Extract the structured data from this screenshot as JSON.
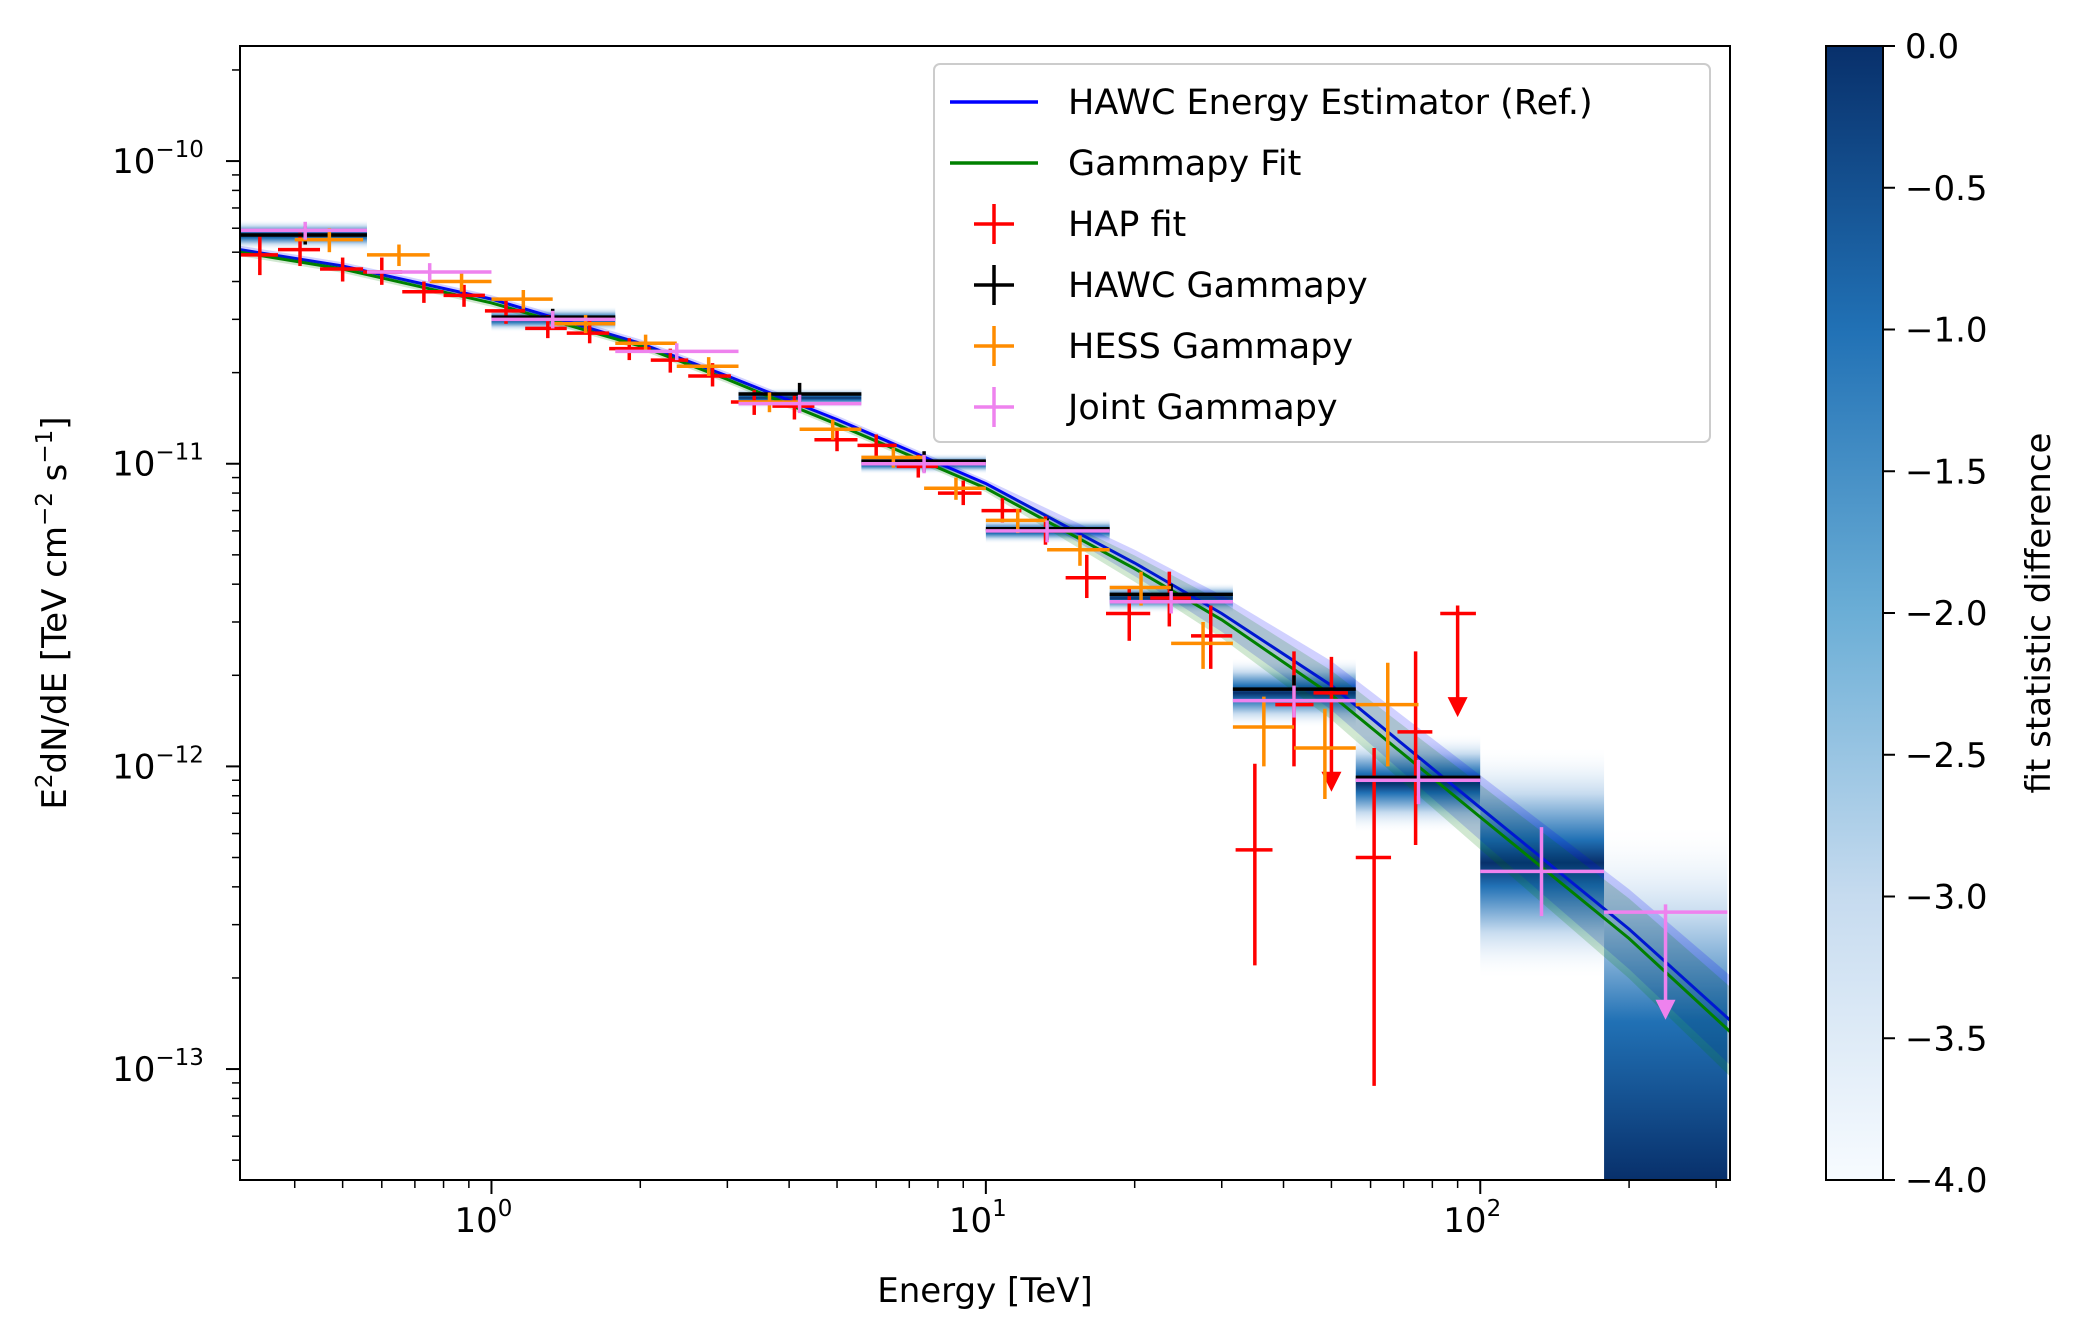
{
  "chart_data": {
    "type": "scatter",
    "title": "",
    "xlabel": "Energy [TeV]",
    "ylabel": {
      "base": "E",
      "sup1": "2",
      "mid": "dN/dE [TeV cm",
      "sup2": "−2",
      "mid2": " s",
      "sup3": "−1",
      "end": "]"
    },
    "x_scale": "log",
    "y_scale": "log",
    "xlim": [
      0.31,
      320
    ],
    "ylim": [
      4.3e-14,
      2.4e-10
    ],
    "x_ticks": [
      {
        "value": 1,
        "base": "10",
        "exp": "0"
      },
      {
        "value": 10,
        "base": "10",
        "exp": "1"
      },
      {
        "value": 100,
        "base": "10",
        "exp": "2"
      }
    ],
    "y_ticks": [
      {
        "value": 1e-13,
        "base": "10",
        "exp": "−13"
      },
      {
        "value": 1e-12,
        "base": "10",
        "exp": "−12"
      },
      {
        "value": 1e-11,
        "base": "10",
        "exp": "−11"
      },
      {
        "value": 1e-10,
        "base": "10",
        "exp": "−10"
      }
    ],
    "legend_position": "top-right",
    "colorbar": {
      "label": "fit statistic difference",
      "range": [
        -4.0,
        0.0
      ],
      "ticks": [
        "0.0",
        "−0.5",
        "−1.0",
        "−1.5",
        "−2.0",
        "−2.5",
        "−3.0",
        "−3.5",
        "−4.0"
      ],
      "tick_values": [
        0.0,
        -0.5,
        -1.0,
        -1.5,
        -2.0,
        -2.5,
        -3.0,
        -3.5,
        -4.0
      ],
      "colors": [
        "#f7fbff",
        "#c6dbef",
        "#6baed6",
        "#2171b5",
        "#08306b"
      ]
    },
    "series": [
      {
        "name": "HAWC Energy Estimator (Ref.)",
        "kind": "line",
        "color": "#0000ff",
        "x": [
          0.31,
          0.5,
          1,
          2,
          3,
          5,
          10,
          20,
          30,
          50,
          100,
          200,
          320
        ],
        "y": [
          5.1e-11,
          4.5e-11,
          3.5e-11,
          2.5e-11,
          1.95e-11,
          1.4e-11,
          8.6e-12,
          4.7e-12,
          3.2e-12,
          1.85e-12,
          7.3e-13,
          2.9e-13,
          1.45e-13
        ]
      },
      {
        "name": "Gammapy Fit",
        "kind": "line",
        "color": "#008000",
        "x": [
          0.31,
          0.5,
          1,
          2,
          3,
          5,
          10,
          20,
          30,
          50,
          100,
          200,
          320
        ],
        "y": [
          5e-11,
          4.4e-11,
          3.4e-11,
          2.45e-11,
          1.9e-11,
          1.35e-11,
          8.3e-12,
          4.5e-12,
          3.05e-12,
          1.72e-12,
          6.8e-13,
          2.7e-13,
          1.33e-13
        ]
      },
      {
        "name": "HAP fit",
        "kind": "errorbar",
        "color": "#ff0000",
        "points": [
          {
            "x": 0.34,
            "y": 4.9e-11,
            "xlo": 0.31,
            "xhi": 0.37,
            "ylo": 4.2e-11,
            "yhi": 5.7e-11
          },
          {
            "x": 0.41,
            "y": 5.1e-11,
            "xlo": 0.37,
            "xhi": 0.45,
            "ylo": 4.5e-11,
            "yhi": 5.8e-11
          },
          {
            "x": 0.5,
            "y": 4.4e-11,
            "xlo": 0.45,
            "xhi": 0.55,
            "ylo": 4e-11,
            "yhi": 4.8e-11
          },
          {
            "x": 0.6,
            "y": 4.3e-11,
            "xlo": 0.55,
            "xhi": 0.66,
            "ylo": 3.9e-11,
            "yhi": 4.8e-11
          },
          {
            "x": 0.73,
            "y": 3.7e-11,
            "xlo": 0.66,
            "xhi": 0.8,
            "ylo": 3.4e-11,
            "yhi": 4e-11
          },
          {
            "x": 0.88,
            "y": 3.6e-11,
            "xlo": 0.8,
            "xhi": 0.97,
            "ylo": 3.3e-11,
            "yhi": 3.9e-11
          },
          {
            "x": 1.07,
            "y": 3.2e-11,
            "xlo": 0.97,
            "xhi": 1.17,
            "ylo": 2.9e-11,
            "yhi": 3.5e-11
          },
          {
            "x": 1.3,
            "y": 2.8e-11,
            "xlo": 1.17,
            "xhi": 1.42,
            "ylo": 2.6e-11,
            "yhi": 3.1e-11
          },
          {
            "x": 1.58,
            "y": 2.7e-11,
            "xlo": 1.42,
            "xhi": 1.73,
            "ylo": 2.5e-11,
            "yhi": 3e-11
          },
          {
            "x": 1.9,
            "y": 2.4e-11,
            "xlo": 1.73,
            "xhi": 2.1,
            "ylo": 2.2e-11,
            "yhi": 2.6e-11
          },
          {
            "x": 2.3,
            "y": 2.2e-11,
            "xlo": 2.1,
            "xhi": 2.5,
            "ylo": 2e-11,
            "yhi": 2.4e-11
          },
          {
            "x": 2.8,
            "y": 1.95e-11,
            "xlo": 2.5,
            "xhi": 3.05,
            "ylo": 1.8e-11,
            "yhi": 2.15e-11
          },
          {
            "x": 3.4,
            "y": 1.6e-11,
            "xlo": 3.05,
            "xhi": 3.7,
            "ylo": 1.45e-11,
            "yhi": 1.75e-11
          },
          {
            "x": 4.1,
            "y": 1.55e-11,
            "xlo": 3.7,
            "xhi": 4.5,
            "ylo": 1.4e-11,
            "yhi": 1.7e-11
          },
          {
            "x": 5.0,
            "y": 1.2e-11,
            "xlo": 4.5,
            "xhi": 5.5,
            "ylo": 1.1e-11,
            "yhi": 1.3e-11
          },
          {
            "x": 6.0,
            "y": 1.15e-11,
            "xlo": 5.5,
            "xhi": 6.6,
            "ylo": 1.05e-11,
            "yhi": 1.25e-11
          },
          {
            "x": 7.3,
            "y": 9.8e-12,
            "xlo": 6.6,
            "xhi": 8.0,
            "ylo": 9e-12,
            "yhi": 1.07e-11
          },
          {
            "x": 9.0,
            "y": 8e-12,
            "xlo": 8.0,
            "xhi": 9.8,
            "ylo": 7.3e-12,
            "yhi": 8.8e-12
          },
          {
            "x": 10.8,
            "y": 7e-12,
            "xlo": 9.8,
            "xhi": 11.8,
            "ylo": 6.4e-12,
            "yhi": 7.7e-12
          },
          {
            "x": 13.2,
            "y": 6e-12,
            "xlo": 11.8,
            "xhi": 14.5,
            "ylo": 5.4e-12,
            "yhi": 6.7e-12
          },
          {
            "x": 16.0,
            "y": 4.2e-12,
            "xlo": 14.5,
            "xhi": 17.5,
            "ylo": 3.6e-12,
            "yhi": 5e-12
          },
          {
            "x": 19.5,
            "y": 3.2e-12,
            "xlo": 17.5,
            "xhi": 21.5,
            "ylo": 2.6e-12,
            "yhi": 3.9e-12
          },
          {
            "x": 23.5,
            "y": 3.6e-12,
            "xlo": 21.5,
            "xhi": 26.0,
            "ylo": 2.9e-12,
            "yhi": 4.4e-12
          },
          {
            "x": 28.5,
            "y": 2.7e-12,
            "xlo": 26.0,
            "xhi": 31.5,
            "ylo": 2.1e-12,
            "yhi": 3.4e-12
          },
          {
            "x": 35.0,
            "y": 5.3e-13,
            "xlo": 32.0,
            "xhi": 38.0,
            "ylo": 2.2e-13,
            "yhi": 1.02e-12
          },
          {
            "x": 42.0,
            "y": 1.6e-12,
            "xlo": 38.5,
            "xhi": 46.0,
            "ylo": 1e-12,
            "yhi": 2.4e-12
          },
          {
            "x": 50.0,
            "y": 1.75e-12,
            "xlo": 46.0,
            "xhi": 54.0,
            "ylo": 8.5e-13,
            "yhi": 2.3e-12,
            "upper_limit": true
          },
          {
            "x": 61.0,
            "y": 5e-13,
            "xlo": 56.0,
            "xhi": 66.0,
            "ylo": 8.8e-14,
            "yhi": 1.15e-12
          },
          {
            "x": 74.0,
            "y": 1.3e-12,
            "xlo": 68.0,
            "xhi": 80.0,
            "ylo": 5.5e-13,
            "yhi": 2.4e-12
          },
          {
            "x": 90.0,
            "y": 3.2e-12,
            "xlo": 83.0,
            "xhi": 98.0,
            "ylo": 1.5e-12,
            "yhi": 3.4e-12,
            "upper_limit": true
          }
        ]
      },
      {
        "name": "HAWC Gammapy",
        "kind": "errorbar",
        "color": "#000000",
        "points": [
          {
            "x": 0.42,
            "y": 5.7e-11,
            "xlo": 0.31,
            "xhi": 0.56,
            "ylo": 5.3e-11,
            "yhi": 6.1e-11
          },
          {
            "x": 1.33,
            "y": 3.05e-11,
            "xlo": 1.0,
            "xhi": 1.78,
            "ylo": 2.85e-11,
            "yhi": 3.25e-11
          },
          {
            "x": 4.2,
            "y": 1.7e-11,
            "xlo": 3.16,
            "xhi": 5.6,
            "ylo": 1.58e-11,
            "yhi": 1.85e-11
          },
          {
            "x": 7.5,
            "y": 1.02e-11,
            "xlo": 5.6,
            "xhi": 10.0,
            "ylo": 9.4e-12,
            "yhi": 1.1e-11
          },
          {
            "x": 13.3,
            "y": 6.1e-12,
            "xlo": 10.0,
            "xhi": 17.8,
            "ylo": 5.6e-12,
            "yhi": 6.6e-12
          },
          {
            "x": 23.7,
            "y": 3.7e-12,
            "xlo": 17.8,
            "xhi": 31.6,
            "ylo": 3.4e-12,
            "yhi": 4e-12
          },
          {
            "x": 42.0,
            "y": 1.8e-12,
            "xlo": 31.6,
            "xhi": 56.0,
            "ylo": 1.6e-12,
            "yhi": 2e-12
          },
          {
            "x": 75.0,
            "y": 9.2e-13,
            "xlo": 56.0,
            "xhi": 100.0,
            "ylo": 8e-13,
            "yhi": 1.05e-12
          }
        ]
      },
      {
        "name": "HESS Gammapy",
        "kind": "errorbar",
        "color": "#ff8c00",
        "points": [
          {
            "x": 0.47,
            "y": 5.5e-11,
            "xlo": 0.4,
            "xhi": 0.55,
            "ylo": 5e-11,
            "yhi": 6e-11
          },
          {
            "x": 0.65,
            "y": 4.9e-11,
            "xlo": 0.56,
            "xhi": 0.75,
            "ylo": 4.5e-11,
            "yhi": 5.3e-11
          },
          {
            "x": 0.87,
            "y": 4e-11,
            "xlo": 0.75,
            "xhi": 1.0,
            "ylo": 3.7e-11,
            "yhi": 4.3e-11
          },
          {
            "x": 1.16,
            "y": 3.5e-11,
            "xlo": 1.0,
            "xhi": 1.33,
            "ylo": 3.25e-11,
            "yhi": 3.75e-11
          },
          {
            "x": 1.55,
            "y": 2.9e-11,
            "xlo": 1.33,
            "xhi": 1.78,
            "ylo": 2.7e-11,
            "yhi": 3.1e-11
          },
          {
            "x": 2.05,
            "y": 2.5e-11,
            "xlo": 1.78,
            "xhi": 2.37,
            "ylo": 2.33e-11,
            "yhi": 2.67e-11
          },
          {
            "x": 2.75,
            "y": 2.1e-11,
            "xlo": 2.37,
            "xhi": 3.16,
            "ylo": 1.95e-11,
            "yhi": 2.25e-11
          },
          {
            "x": 3.65,
            "y": 1.6e-11,
            "xlo": 3.16,
            "xhi": 4.2,
            "ylo": 1.48e-11,
            "yhi": 1.72e-11
          },
          {
            "x": 4.9,
            "y": 1.3e-11,
            "xlo": 4.2,
            "xhi": 5.6,
            "ylo": 1.2e-11,
            "yhi": 1.4e-11
          },
          {
            "x": 6.5,
            "y": 1.05e-11,
            "xlo": 5.6,
            "xhi": 7.5,
            "ylo": 9.7e-12,
            "yhi": 1.13e-11
          },
          {
            "x": 8.7,
            "y": 8.3e-12,
            "xlo": 7.5,
            "xhi": 10.0,
            "ylo": 7.6e-12,
            "yhi": 9e-12
          },
          {
            "x": 11.6,
            "y": 6.5e-12,
            "xlo": 10.0,
            "xhi": 13.3,
            "ylo": 5.9e-12,
            "yhi": 7.1e-12
          },
          {
            "x": 15.5,
            "y": 5.2e-12,
            "xlo": 13.3,
            "xhi": 17.8,
            "ylo": 4.6e-12,
            "yhi": 5.8e-12
          },
          {
            "x": 20.6,
            "y": 3.9e-12,
            "xlo": 17.8,
            "xhi": 23.7,
            "ylo": 3.4e-12,
            "yhi": 4.4e-12
          },
          {
            "x": 27.5,
            "y": 2.55e-12,
            "xlo": 23.7,
            "xhi": 31.6,
            "ylo": 2.1e-12,
            "yhi": 3e-12
          },
          {
            "x": 36.5,
            "y": 1.35e-12,
            "xlo": 31.6,
            "xhi": 42.0,
            "ylo": 1e-12,
            "yhi": 1.7e-12
          },
          {
            "x": 48.5,
            "y": 1.15e-12,
            "xlo": 42.0,
            "xhi": 56.0,
            "ylo": 7.8e-13,
            "yhi": 1.55e-12
          },
          {
            "x": 65.0,
            "y": 1.6e-12,
            "xlo": 56.0,
            "xhi": 75.0,
            "ylo": 1e-12,
            "yhi": 2.2e-12
          }
        ]
      },
      {
        "name": "Joint Gammapy",
        "kind": "errorbar",
        "color": "#ee82ee",
        "points": [
          {
            "x": 0.42,
            "y": 5.9e-11,
            "xlo": 0.31,
            "xhi": 0.56,
            "ylo": 5.5e-11,
            "yhi": 6.3e-11
          },
          {
            "x": 0.75,
            "y": 4.3e-11,
            "xlo": 0.56,
            "xhi": 1.0,
            "ylo": 4e-11,
            "yhi": 4.6e-11
          },
          {
            "x": 1.33,
            "y": 3e-11,
            "xlo": 1.0,
            "xhi": 1.78,
            "ylo": 2.8e-11,
            "yhi": 3.2e-11
          },
          {
            "x": 2.37,
            "y": 2.35e-11,
            "xlo": 1.78,
            "xhi": 3.16,
            "ylo": 2.2e-11,
            "yhi": 2.5e-11
          },
          {
            "x": 4.2,
            "y": 1.58e-11,
            "xlo": 3.16,
            "xhi": 5.6,
            "ylo": 1.47e-11,
            "yhi": 1.69e-11
          },
          {
            "x": 7.5,
            "y": 1e-11,
            "xlo": 5.6,
            "xhi": 10.0,
            "ylo": 9.3e-12,
            "yhi": 1.07e-11
          },
          {
            "x": 13.3,
            "y": 6e-12,
            "xlo": 10.0,
            "xhi": 17.8,
            "ylo": 5.5e-12,
            "yhi": 6.5e-12
          },
          {
            "x": 23.7,
            "y": 3.5e-12,
            "xlo": 17.8,
            "xhi": 31.6,
            "ylo": 3.2e-12,
            "yhi": 3.8e-12
          },
          {
            "x": 42.0,
            "y": 1.65e-12,
            "xlo": 31.6,
            "xhi": 56.0,
            "ylo": 1.45e-12,
            "yhi": 1.85e-12
          },
          {
            "x": 75.0,
            "y": 9e-13,
            "xlo": 56.0,
            "xhi": 100.0,
            "ylo": 7.5e-13,
            "yhi": 1.05e-12
          },
          {
            "x": 133.0,
            "y": 4.5e-13,
            "xlo": 100.0,
            "xhi": 178.0,
            "ylo": 3.2e-13,
            "yhi": 6.3e-13
          },
          {
            "x": 237.0,
            "y": 3.3e-13,
            "xlo": 178.0,
            "xhi": 316.0,
            "ylo": 1.5e-13,
            "yhi": 3.5e-13,
            "upper_limit": true
          }
        ]
      }
    ],
    "likelihood_profiles": [
      {
        "xlo": 0.31,
        "xhi": 0.56,
        "y_center": 5.7e-11,
        "y_spread": 1.12
      },
      {
        "xlo": 1.0,
        "xhi": 1.78,
        "y_center": 3e-11,
        "y_spread": 1.1
      },
      {
        "xlo": 3.16,
        "xhi": 5.6,
        "y_center": 1.65e-11,
        "y_spread": 1.08
      },
      {
        "xlo": 5.6,
        "xhi": 10.0,
        "y_center": 1e-11,
        "y_spread": 1.08
      },
      {
        "xlo": 10.0,
        "xhi": 17.8,
        "y_center": 6e-12,
        "y_spread": 1.1
      },
      {
        "xlo": 17.8,
        "xhi": 31.6,
        "y_center": 3.6e-12,
        "y_spread": 1.12
      },
      {
        "xlo": 31.6,
        "xhi": 56.0,
        "y_center": 1.75e-12,
        "y_spread": 1.3
      },
      {
        "xlo": 56.0,
        "xhi": 100.0,
        "y_center": 8.8e-13,
        "y_spread": 1.45
      },
      {
        "xlo": 100.0,
        "xhi": 178.0,
        "y_center": 4.8e-13,
        "y_spread": 2.4
      },
      {
        "xlo": 178.0,
        "xhi": 316.0,
        "y_center": 1.8e-13,
        "y_spread": 3.5,
        "open_bottom": true
      }
    ]
  }
}
